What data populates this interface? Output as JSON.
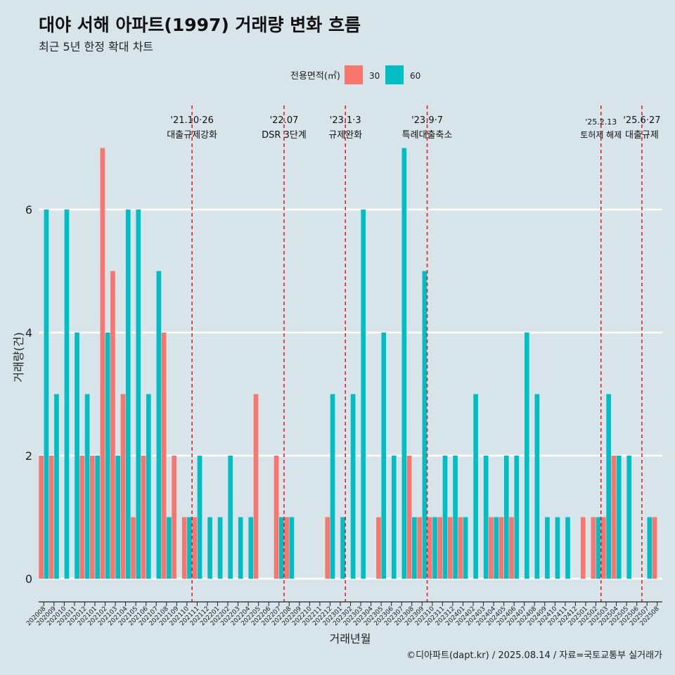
{
  "title": "대야 서해 아파트(1997) 거래량 변화 흐름",
  "subtitle": "최근 5년 한정 확대 차트",
  "caption": "©디아파트(dapt.kr) / 2025.08.14 / 자료=국토교통부 실거래가",
  "chart_data": {
    "type": "bar",
    "xlabel": "거래년월",
    "ylabel": "거래량(건)",
    "ylim": [
      0,
      7.3
    ],
    "yticks": [
      0,
      2,
      4,
      6
    ],
    "legend": {
      "title": "전용면적(㎡)",
      "position": "top",
      "entries": [
        {
          "name": "30",
          "color": "#f8766d"
        },
        {
          "name": "60",
          "color": "#00bfc4"
        }
      ]
    },
    "categories": [
      "202008",
      "202009",
      "202010",
      "202011",
      "202012",
      "202101",
      "202102",
      "202103",
      "202104",
      "202105",
      "202106",
      "202107",
      "202108",
      "202109",
      "202110",
      "202111",
      "202112",
      "202201",
      "202202",
      "202203",
      "202204",
      "202205",
      "202206",
      "202207",
      "202208",
      "202209",
      "202210",
      "202211",
      "202212",
      "202301",
      "202302",
      "202303",
      "202304",
      "202305",
      "202306",
      "202307",
      "202308",
      "202309",
      "202310",
      "202311",
      "202312",
      "202401",
      "202402",
      "202403",
      "202404",
      "202405",
      "202406",
      "202407",
      "202408",
      "202409",
      "202410",
      "202411",
      "202412",
      "202501",
      "202502",
      "202503",
      "202504",
      "202505",
      "202506",
      "202507",
      "202508"
    ],
    "series": [
      {
        "name": "30",
        "color": "#f8766d",
        "values": [
          2,
          2,
          null,
          null,
          2,
          2,
          7,
          5,
          3,
          1,
          2,
          null,
          4,
          2,
          1,
          1,
          null,
          null,
          null,
          null,
          null,
          3,
          null,
          2,
          1,
          null,
          null,
          null,
          1,
          null,
          null,
          null,
          null,
          1,
          null,
          null,
          2,
          1,
          1,
          1,
          1,
          1,
          null,
          null,
          1,
          1,
          1,
          null,
          null,
          null,
          null,
          null,
          null,
          1,
          1,
          1,
          2,
          null,
          null,
          null,
          1
        ]
      },
      {
        "name": "60",
        "color": "#00bfc4",
        "values": [
          6,
          3,
          6,
          4,
          3,
          2,
          4,
          2,
          6,
          6,
          3,
          5,
          1,
          null,
          1,
          2,
          1,
          1,
          2,
          1,
          1,
          null,
          null,
          1,
          1,
          null,
          null,
          null,
          3,
          1,
          3,
          6,
          null,
          4,
          2,
          7,
          1,
          5,
          1,
          2,
          2,
          1,
          3,
          2,
          1,
          2,
          2,
          4,
          3,
          1,
          1,
          1,
          null,
          null,
          1,
          3,
          2,
          2,
          null,
          1,
          null
        ]
      }
    ],
    "annotations": [
      {
        "after": "202110",
        "date": "'21.10·26",
        "label": "대출규제강화"
      },
      {
        "after": "202207",
        "date": "'22.07",
        "label": "DSR 3단계"
      },
      {
        "after": "202301",
        "date": "'23.1·3",
        "label": "규제완화"
      },
      {
        "after": "202309",
        "date": "'23.9·7",
        "label": "특례대출축소"
      },
      {
        "after": "202502",
        "date": "'25.2.13",
        "label": "토허제 해제"
      },
      {
        "after": "202506",
        "date": "'25.6·27",
        "label": "대출규제"
      }
    ]
  }
}
